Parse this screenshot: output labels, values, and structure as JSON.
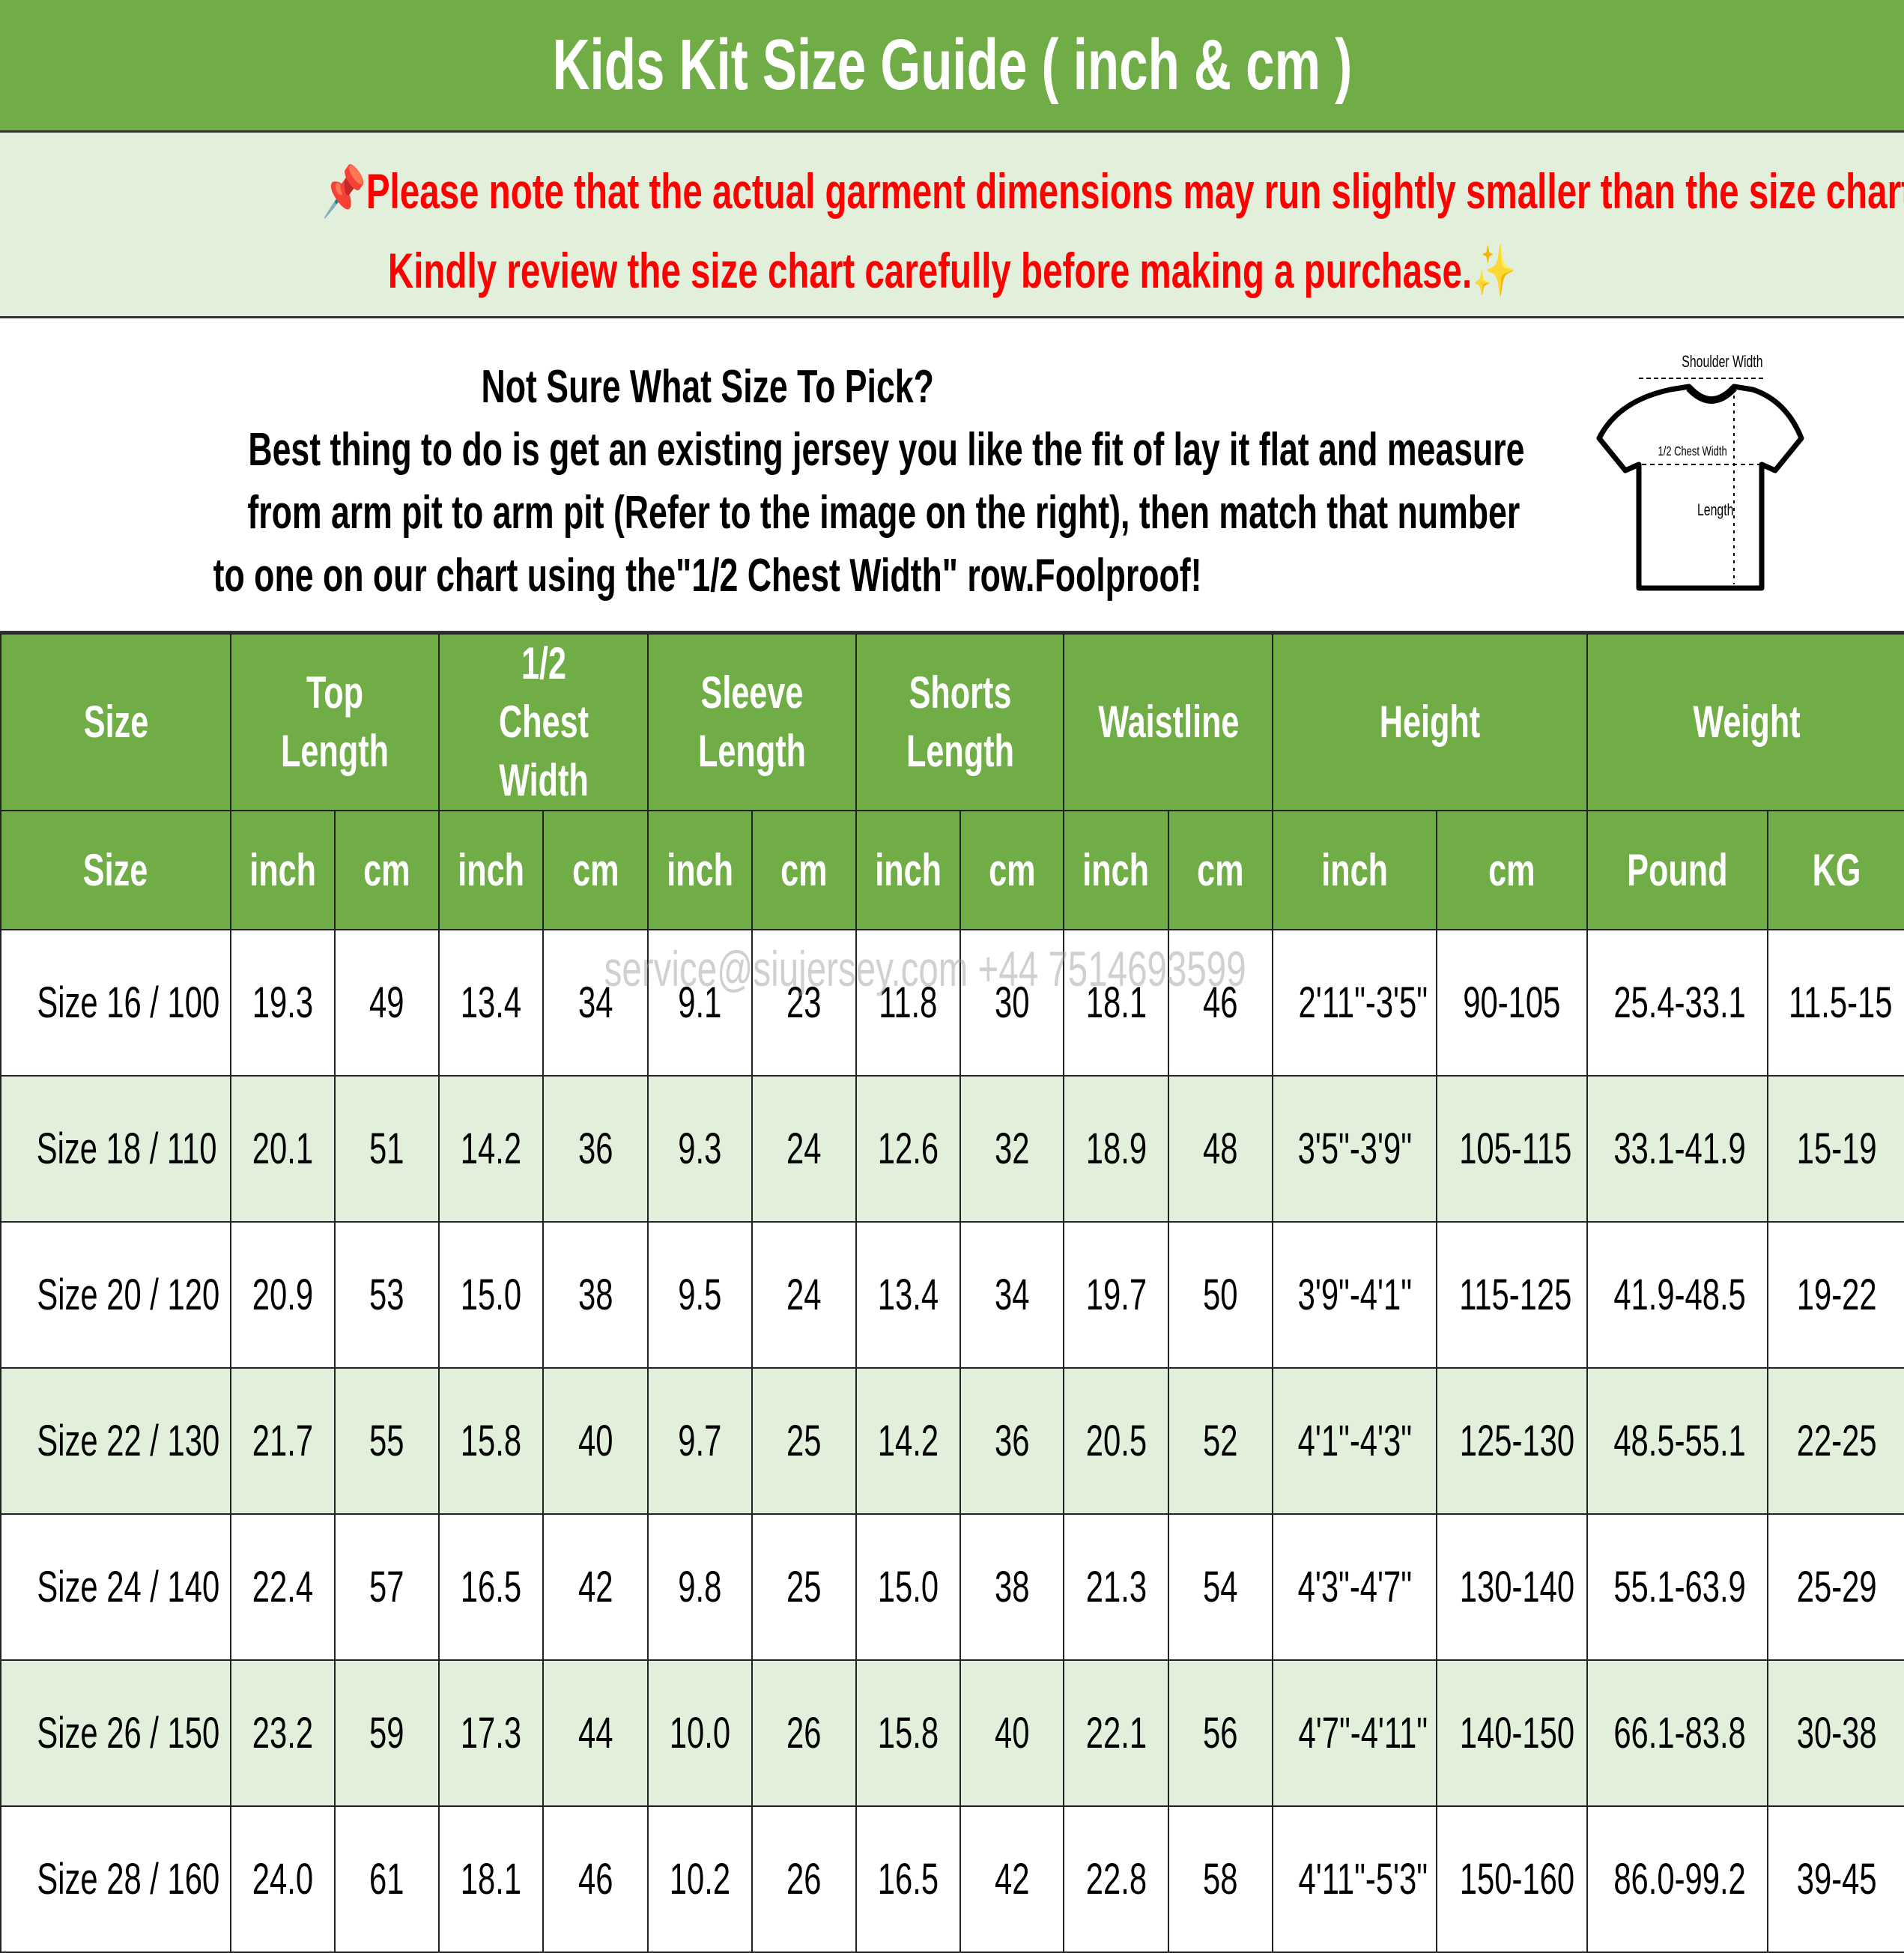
{
  "title": "Kids Kit Size Guide ( inch & cm )",
  "note": {
    "line1": "Please note that the actual garment dimensions may run slightly smaller than the size chart",
    "line1_end": ".",
    "line2": "Kindly review the size chart carefully before making a purchase.",
    "icons": [
      "pushpin-icon",
      "ruler-icon",
      "sparkles-icon"
    ],
    "color": "#ff0000"
  },
  "intro": {
    "heading": "Not Sure What Size To Pick?",
    "lines": [
      "Best thing to do is get an existing jersey you like the fit of lay it flat and measure",
      "from arm pit to arm pit (Refer to the image on the right), then match that number",
      "to one on our chart using the\"1/2 Chest Width\" row.Foolproof!"
    ]
  },
  "diagram": {
    "shoulder": "Shoulder Width",
    "chest": "1/2 Chest Width",
    "length": "Length"
  },
  "watermark": "service@siujersey.com   +44 7514693599",
  "colors": {
    "header_green": "#70ad47",
    "row_alt": "#e2efda"
  },
  "table": {
    "groups": [
      {
        "label": "Size",
        "span": 1
      },
      {
        "label": "Top Length",
        "span": 2
      },
      {
        "label": "1/2 Chest Width",
        "span": 2
      },
      {
        "label": "Sleeve Length",
        "span": 2
      },
      {
        "label": "Shorts Length",
        "span": 2
      },
      {
        "label": "Waistline",
        "span": 2
      },
      {
        "label": "Height",
        "span": 2
      },
      {
        "label": "Weight",
        "span": 2
      }
    ],
    "units": [
      "Size",
      "inch",
      "cm",
      "inch",
      "cm",
      "inch",
      "cm",
      "inch",
      "cm",
      "inch",
      "cm",
      "inch",
      "cm",
      "Pound",
      "KG"
    ],
    "rows": [
      [
        "Size 16 / 100",
        "19.3",
        "49",
        "13.4",
        "34",
        "9.1",
        "23",
        "11.8",
        "30",
        "18.1",
        "46",
        "2'11\"-3'5\"",
        "90-105",
        "25.4-33.1",
        "11.5-15"
      ],
      [
        "Size 18 / 110",
        "20.1",
        "51",
        "14.2",
        "36",
        "9.3",
        "24",
        "12.6",
        "32",
        "18.9",
        "48",
        "3'5\"-3'9\"",
        "105-115",
        "33.1-41.9",
        "15-19"
      ],
      [
        "Size 20 / 120",
        "20.9",
        "53",
        "15.0",
        "38",
        "9.5",
        "24",
        "13.4",
        "34",
        "19.7",
        "50",
        "3'9\"-4'1\"",
        "115-125",
        "41.9-48.5",
        "19-22"
      ],
      [
        "Size 22 / 130",
        "21.7",
        "55",
        "15.8",
        "40",
        "9.7",
        "25",
        "14.2",
        "36",
        "20.5",
        "52",
        "4'1\"-4'3\"",
        "125-130",
        "48.5-55.1",
        "22-25"
      ],
      [
        "Size 24 / 140",
        "22.4",
        "57",
        "16.5",
        "42",
        "9.8",
        "25",
        "15.0",
        "38",
        "21.3",
        "54",
        "4'3\"-4'7\"",
        "130-140",
        "55.1-63.9",
        "25-29"
      ],
      [
        "Size 26 / 150",
        "23.2",
        "59",
        "17.3",
        "44",
        "10.0",
        "26",
        "15.8",
        "40",
        "22.1",
        "56",
        "4'7\"-4'11\"",
        "140-150",
        "66.1-83.8",
        "30-38"
      ],
      [
        "Size 28 / 160",
        "24.0",
        "61",
        "18.1",
        "46",
        "10.2",
        "26",
        "16.5",
        "42",
        "22.8",
        "58",
        "4'11\"-5'3\"",
        "150-160",
        "86.0-99.2",
        "39-45"
      ]
    ]
  }
}
